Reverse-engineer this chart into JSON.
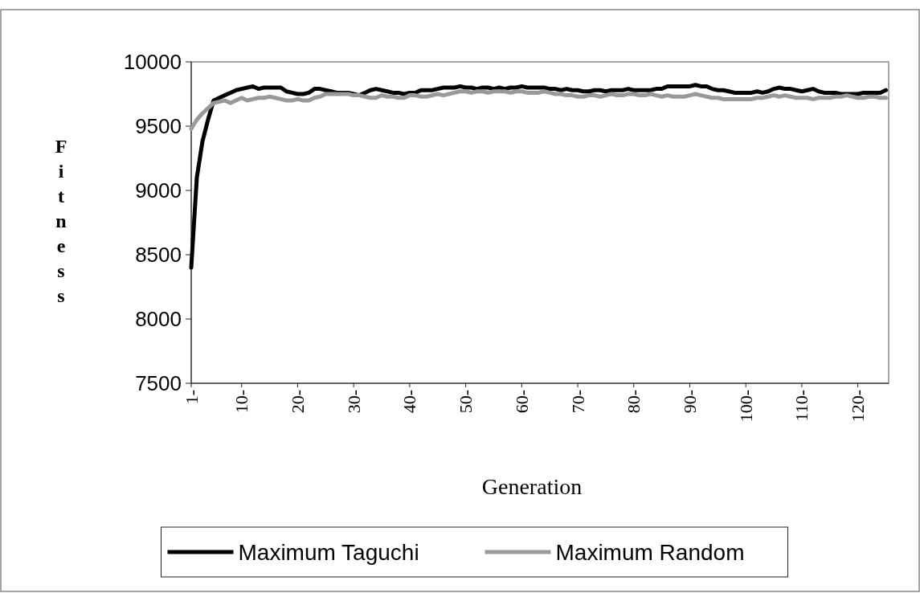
{
  "chart_data": {
    "type": "line",
    "xlabel": "Generation",
    "ylabel": "Fitness",
    "x": [
      1,
      2,
      3,
      4,
      5,
      6,
      7,
      8,
      9,
      10,
      11,
      12,
      13,
      14,
      15,
      16,
      17,
      18,
      19,
      20,
      21,
      22,
      23,
      24,
      25,
      26,
      27,
      28,
      29,
      30,
      31,
      32,
      33,
      34,
      35,
      36,
      37,
      38,
      39,
      40,
      41,
      42,
      43,
      44,
      45,
      46,
      47,
      48,
      49,
      50,
      51,
      52,
      53,
      54,
      55,
      56,
      57,
      58,
      59,
      60,
      61,
      62,
      63,
      64,
      65,
      66,
      67,
      68,
      69,
      70,
      71,
      72,
      73,
      74,
      75,
      76,
      77,
      78,
      79,
      80,
      81,
      82,
      83,
      84,
      85,
      86,
      87,
      88,
      89,
      90,
      91,
      92,
      93,
      94,
      95,
      96,
      97,
      98,
      99,
      100,
      101,
      102,
      103,
      104,
      105,
      106,
      107,
      108,
      109,
      110,
      111,
      112,
      113,
      114,
      115,
      116,
      117,
      118,
      119,
      120,
      121,
      122,
      123,
      124,
      125
    ],
    "series": [
      {
        "name": "Maximum Taguchi",
        "color": "#000000",
        "values": [
          8400,
          9100,
          9380,
          9550,
          9700,
          9720,
          9740,
          9760,
          9780,
          9790,
          9800,
          9810,
          9790,
          9800,
          9800,
          9800,
          9800,
          9770,
          9760,
          9750,
          9750,
          9760,
          9790,
          9790,
          9780,
          9770,
          9760,
          9760,
          9760,
          9750,
          9740,
          9760,
          9780,
          9790,
          9780,
          9770,
          9760,
          9760,
          9750,
          9760,
          9760,
          9780,
          9780,
          9780,
          9790,
          9800,
          9800,
          9800,
          9810,
          9800,
          9800,
          9790,
          9800,
          9800,
          9790,
          9800,
          9790,
          9800,
          9800,
          9810,
          9800,
          9800,
          9800,
          9800,
          9790,
          9790,
          9780,
          9790,
          9780,
          9780,
          9770,
          9770,
          9780,
          9780,
          9770,
          9780,
          9780,
          9780,
          9790,
          9780,
          9780,
          9780,
          9780,
          9790,
          9790,
          9810,
          9810,
          9810,
          9810,
          9810,
          9820,
          9810,
          9810,
          9790,
          9780,
          9780,
          9770,
          9760,
          9760,
          9760,
          9760,
          9770,
          9760,
          9770,
          9790,
          9800,
          9790,
          9790,
          9780,
          9770,
          9780,
          9790,
          9770,
          9760,
          9760,
          9760,
          9750,
          9750,
          9750,
          9750,
          9760,
          9760,
          9760,
          9760,
          9780
        ]
      },
      {
        "name": "Maximum Random",
        "color": "#999999",
        "values": [
          9480,
          9550,
          9600,
          9640,
          9680,
          9690,
          9700,
          9680,
          9700,
          9720,
          9700,
          9710,
          9720,
          9720,
          9730,
          9720,
          9710,
          9700,
          9700,
          9710,
          9700,
          9700,
          9720,
          9730,
          9750,
          9750,
          9750,
          9750,
          9750,
          9740,
          9740,
          9730,
          9720,
          9720,
          9740,
          9730,
          9730,
          9720,
          9720,
          9740,
          9740,
          9730,
          9730,
          9740,
          9750,
          9740,
          9750,
          9760,
          9770,
          9770,
          9760,
          9770,
          9770,
          9760,
          9770,
          9770,
          9770,
          9760,
          9770,
          9770,
          9760,
          9760,
          9760,
          9770,
          9760,
          9750,
          9750,
          9740,
          9740,
          9730,
          9730,
          9740,
          9740,
          9730,
          9740,
          9750,
          9740,
          9740,
          9750,
          9750,
          9740,
          9740,
          9750,
          9740,
          9730,
          9740,
          9730,
          9730,
          9730,
          9740,
          9750,
          9740,
          9730,
          9720,
          9720,
          9710,
          9710,
          9710,
          9710,
          9710,
          9710,
          9720,
          9720,
          9730,
          9740,
          9730,
          9740,
          9730,
          9720,
          9720,
          9720,
          9710,
          9720,
          9720,
          9720,
          9730,
          9730,
          9740,
          9730,
          9720,
          9720,
          9730,
          9730,
          9720,
          9720
        ]
      }
    ],
    "xlim": [
      1,
      125.5
    ],
    "xticks": [
      {
        "value": 1,
        "label": "1-"
      },
      {
        "value": 10,
        "label": "10-"
      },
      {
        "value": 20,
        "label": "20-"
      },
      {
        "value": 30,
        "label": "30-"
      },
      {
        "value": 40,
        "label": "40-"
      },
      {
        "value": 50,
        "label": "50-"
      },
      {
        "value": 60,
        "label": "60-"
      },
      {
        "value": 70,
        "label": "70-"
      },
      {
        "value": 80,
        "label": "80-"
      },
      {
        "value": 90,
        "label": "90-"
      },
      {
        "value": 100,
        "label": "100-"
      },
      {
        "value": 110,
        "label": "110-"
      },
      {
        "value": 120,
        "label": "120-"
      }
    ],
    "ylim": [
      7500,
      10000
    ],
    "yticks": [
      7500,
      8000,
      8500,
      9000,
      9500,
      10000
    ],
    "grid": false,
    "legend": "bottom",
    "marker": "none",
    "line_style": "solid"
  }
}
